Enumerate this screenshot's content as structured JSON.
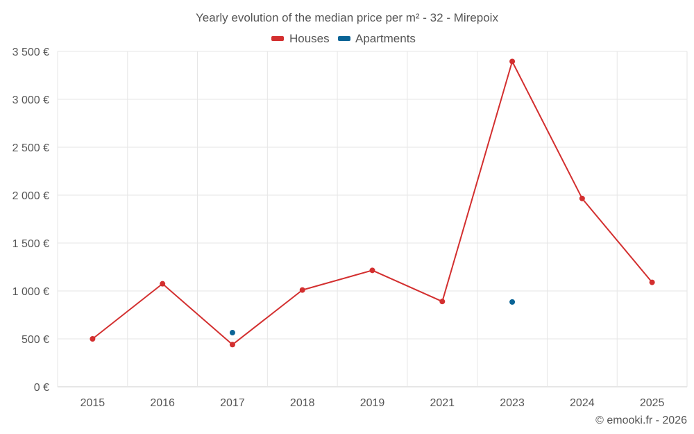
{
  "chart_data": {
    "type": "line",
    "title": "Yearly evolution of the median price per m² - 32 - Mirepoix",
    "categories": [
      "2015",
      "2016",
      "2017",
      "2018",
      "2019",
      "2021",
      "2023",
      "2024",
      "2025"
    ],
    "ylim": [
      0,
      3500
    ],
    "yticks": [
      0,
      500,
      1000,
      1500,
      2000,
      2500,
      3000,
      3500
    ],
    "ytick_labels": [
      "0 €",
      "500 €",
      "1 000 €",
      "1 500 €",
      "2 000 €",
      "2 500 €",
      "3 000 €",
      "3 500 €"
    ],
    "legend_position": "top-center",
    "grid": true,
    "series": [
      {
        "name": "Houses",
        "color": "#d32f2f",
        "values": [
          500,
          1075,
          440,
          1010,
          1215,
          890,
          3395,
          1965,
          1090
        ]
      },
      {
        "name": "Apartments",
        "color": "#0a6496",
        "values": [
          null,
          null,
          565,
          null,
          null,
          null,
          885,
          null,
          null
        ]
      }
    ]
  },
  "credit": "© emooki.fr - 2026"
}
